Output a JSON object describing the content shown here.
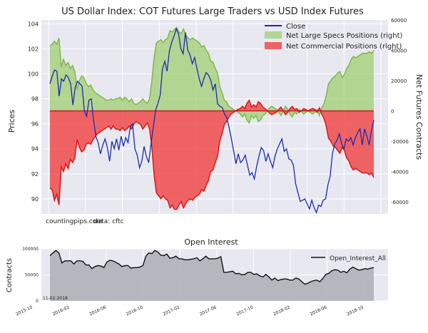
{
  "chart_data": [
    {
      "type": "line",
      "title": "US Dollar Index: COT Futures Large Traders vs USD Index Futures",
      "ylabel": "Prices",
      "y2label": "Net Futures Contracts",
      "ylim": [
        88.8,
        104.3
      ],
      "y2lim": [
        -68000,
        60000
      ],
      "yticks": [
        "90",
        "92",
        "94",
        "96",
        "98",
        "100",
        "102",
        "104"
      ],
      "y2ticks": [
        "-60000",
        "-40000",
        "-20000",
        "0",
        "20000",
        "40000",
        "60000"
      ],
      "legend": "top-right",
      "annotations": [
        "countingpips.com",
        "data: cftc"
      ],
      "series": [
        {
          "name": "Close",
          "axis": "left",
          "color": "#1c2bb0",
          "values": [
            99.2,
            99.8,
            100.3,
            100.2,
            98.2,
            99.6,
            99.4,
            99.9,
            99.7,
            99.2,
            97.5,
            98.9,
            99.4,
            99.2,
            99.0,
            97.0,
            96.6,
            97.9,
            98.0,
            96.3,
            95.0,
            94.5,
            93.6,
            94.3,
            94.8,
            94.1,
            93.0,
            94.6,
            94.0,
            94.8,
            93.9,
            95.0,
            94.2,
            94.9,
            94.5,
            95.8,
            96.0,
            94.0,
            93.5,
            92.5,
            93.0,
            94.2,
            93.4,
            92.9,
            94.4,
            95.7,
            97.1,
            97.6,
            98.3,
            100.4,
            101.0,
            100.2,
            101.8,
            102.5,
            103.0,
            103.6,
            103.2,
            102.0,
            101.6,
            103.3,
            101.9,
            101.5,
            100.8,
            101.3,
            100.4,
            99.6,
            99.0,
            99.6,
            100.1,
            99.9,
            99.5,
            98.7,
            99.2,
            97.6,
            97.4,
            97.3,
            96.8,
            96.5,
            95.7,
            94.8,
            93.8,
            92.8,
            93.6,
            92.9,
            93.1,
            93.5,
            92.7,
            91.9,
            92.1,
            91.6,
            92.6,
            93.4,
            94.1,
            93.9,
            93.0,
            93.6,
            93.0,
            92.5,
            93.4,
            94.0,
            94.4,
            94.8,
            93.8,
            94.0,
            93.2,
            93.1,
            92.7,
            91.2,
            90.5,
            89.8,
            89.9,
            90.0,
            89.6,
            89.2,
            89.9,
            89.3,
            88.9,
            89.5,
            89.4,
            89.9,
            90.0,
            91.1,
            91.8,
            93.6,
            94.4,
            94.7,
            95.2,
            94.4,
            94.0,
            94.8,
            94.6,
            94.9,
            94.3,
            94.9,
            95.3,
            95.6,
            94.3,
            95.6,
            95.0,
            94.3,
            95.5,
            96.3
          ]
        },
        {
          "name": "Net Large Specs Positions (right)",
          "axis": "right",
          "color": "#9ccd6a",
          "values": [
            43000,
            44000,
            46000,
            44000,
            48000,
            29000,
            34000,
            30000,
            32000,
            28000,
            30000,
            26000,
            14000,
            20000,
            23000,
            22000,
            18000,
            16000,
            17000,
            14000,
            12000,
            11000,
            10000,
            9000,
            8000,
            7000,
            7000,
            8000,
            7000,
            8000,
            8000,
            9000,
            7000,
            9000,
            8000,
            6000,
            8000,
            5000,
            4000,
            5000,
            6000,
            8000,
            6000,
            5000,
            8000,
            20000,
            35000,
            45000,
            46000,
            47000,
            45000,
            47000,
            48000,
            53000,
            52000,
            54000,
            55000,
            52000,
            51000,
            54000,
            50000,
            48000,
            47000,
            48000,
            47000,
            46000,
            45000,
            42000,
            43000,
            40000,
            38000,
            33000,
            32000,
            28000,
            25000,
            16000,
            12000,
            7000,
            6000,
            3000,
            2000,
            1000,
            0,
            -1000,
            -2000,
            -4000,
            -2000,
            -6000,
            -8000,
            -3000,
            -5000,
            -3000,
            -7000,
            -6000,
            -3000,
            -2000,
            0,
            2000,
            3000,
            2000,
            1000,
            -1000,
            -3000,
            0,
            3000,
            1000,
            -2000,
            -4000,
            -1000,
            -2000,
            1000,
            0,
            -2000,
            -1000,
            0,
            -1000,
            -2000,
            -1000,
            1000,
            -3000,
            2000,
            5000,
            10000,
            18000,
            20000,
            22000,
            23000,
            25000,
            26000,
            22000,
            24000,
            28000,
            30000,
            34000,
            36000,
            35000,
            36000,
            37000,
            38000,
            38000,
            38000,
            39000,
            38000,
            40000
          ]
        },
        {
          "name": "Net Commercial Positions (right)",
          "axis": "right",
          "color": "#f04040",
          "values": [
            -51000,
            -52000,
            -59000,
            -55000,
            -62000,
            -37000,
            -40000,
            -35000,
            -38000,
            -32000,
            -34000,
            -31000,
            -19000,
            -24000,
            -27000,
            -26000,
            -22000,
            -21000,
            -22000,
            -19000,
            -17000,
            -15000,
            -14000,
            -13000,
            -12000,
            -11000,
            -10000,
            -12000,
            -10000,
            -12000,
            -12000,
            -13000,
            -11000,
            -13000,
            -12000,
            -10000,
            -12000,
            -9000,
            -7000,
            -8000,
            -9000,
            -12000,
            -10000,
            -8000,
            -12000,
            -24000,
            -42000,
            -54000,
            -56000,
            -58000,
            -56000,
            -58000,
            -59000,
            -64000,
            -62000,
            -65000,
            -65000,
            -62000,
            -60000,
            -64000,
            -61000,
            -59000,
            -58000,
            -59000,
            -57000,
            -56000,
            -55000,
            -52000,
            -53000,
            -49000,
            -46000,
            -40000,
            -39000,
            -34000,
            -30000,
            -20000,
            -15000,
            -9000,
            -7000,
            -4000,
            -2000,
            -1000,
            0,
            1000,
            1500,
            3000,
            1500,
            5000,
            7000,
            2500,
            4000,
            2500,
            6000,
            5000,
            2500,
            1500,
            0,
            -1500,
            -2500,
            -1500,
            -1000,
            1000,
            2500,
            0,
            -2500,
            -1000,
            1500,
            3000,
            1000,
            1500,
            -1000,
            0,
            1500,
            1000,
            0,
            1000,
            1500,
            1000,
            -1000,
            2000,
            -2000,
            -5000,
            -10000,
            -18000,
            -20000,
            -23000,
            -24000,
            -26000,
            -28000,
            -24000,
            -26000,
            -31000,
            -33000,
            -37000,
            -39000,
            -38000,
            -39000,
            -40000,
            -41000,
            -41000,
            -41000,
            -42000,
            -41000,
            -44000
          ]
        }
      ]
    },
    {
      "type": "area",
      "title": "Open Interest",
      "ylabel": "Contracts",
      "ylim": [
        0,
        100000
      ],
      "yticks": [
        "0",
        "50000",
        "100000"
      ],
      "xticks": [
        "2015-10",
        "2016-02",
        "2016-06",
        "2016-10",
        "2017-02",
        "2017-06",
        "2017-10",
        "2018-02",
        "2018-06",
        "2018-10"
      ],
      "date_label": "11-02-2018",
      "legend": "top-right",
      "series": [
        {
          "name": "Open_Interest_All",
          "color": "#111111",
          "fill": "#b0b0b8",
          "values": [
            87000,
            92000,
            97000,
            92000,
            73000,
            77000,
            77000,
            77000,
            71000,
            77000,
            77000,
            76000,
            69000,
            69000,
            62000,
            66000,
            68000,
            67000,
            64000,
            75000,
            78000,
            77000,
            74000,
            71000,
            66000,
            68000,
            68000,
            63000,
            64000,
            64000,
            65000,
            68000,
            86000,
            92000,
            91000,
            97000,
            94000,
            88000,
            87000,
            90000,
            82000,
            83000,
            86000,
            81000,
            81000,
            79000,
            79000,
            80000,
            81000,
            83000,
            77000,
            81000,
            86000,
            81000,
            81000,
            81000,
            82000,
            85000,
            55000,
            55000,
            56000,
            57000,
            52000,
            53000,
            50000,
            51000,
            55000,
            55000,
            51000,
            52000,
            48000,
            46000,
            51000,
            46000,
            40000,
            44000,
            39000,
            41000,
            42000,
            42000,
            40000,
            40000,
            44000,
            42000,
            37000,
            32000,
            34000,
            37000,
            39000,
            40000,
            37000,
            43000,
            51000,
            53000,
            58000,
            60000,
            59000,
            55000,
            57000,
            54000,
            61000,
            65000,
            62000,
            59000,
            60000,
            62000,
            61000,
            63000,
            64000
          ]
        }
      ]
    }
  ]
}
